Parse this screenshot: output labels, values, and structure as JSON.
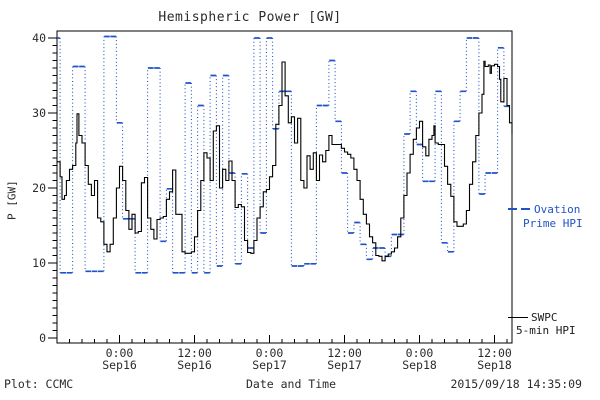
{
  "title": "Hemispheric Power [GW]",
  "axes": {
    "ylabel": "P [GW]",
    "xlabel": "Date and Time",
    "yticks": [
      "0",
      "10",
      "20",
      "30",
      "40"
    ],
    "xticks": [
      {
        "time": "0:00",
        "date": "Sep16"
      },
      {
        "time": "12:00",
        "date": "Sep16"
      },
      {
        "time": "0:00",
        "date": "Sep17"
      },
      {
        "time": "12:00",
        "date": "Sep17"
      },
      {
        "time": "0:00",
        "date": "Sep18"
      },
      {
        "time": "12:00",
        "date": "Sep18"
      }
    ]
  },
  "footer": {
    "credit": "Plot: CCMC",
    "timestamp": "2015/09/18 14:35:09"
  },
  "legend": {
    "ovation_line1": "Ovation",
    "ovation_line2": "Prime HPI",
    "swpc_line1": "SWPC",
    "swpc_line2": "5-min HPI"
  },
  "colors": {
    "ovation": "#1f53c6",
    "swpc": "#000000",
    "frame": "#000000"
  },
  "chart_data": {
    "type": "line",
    "title": "Hemispheric Power [GW]",
    "xlabel": "Date and Time",
    "ylabel": "P [GW]",
    "ylim": [
      0,
      40
    ],
    "y_major_ticks": [
      0,
      10,
      20,
      30,
      40
    ],
    "y_minor_step": 1,
    "x_unit": "hours (axis spans ~2015-09-15 14:00 to 2015-09-18 14:50 UT)",
    "x_range_hours": [
      0,
      72.8
    ],
    "x_major_tick_hours": [
      10,
      22,
      34,
      46,
      58,
      70
    ],
    "x_minor_step_hours": 2,
    "grid": false,
    "legend_position": "right-outside",
    "series": [
      {
        "name": "Ovation Prime HPI",
        "style": "hourly horizontal dashes joined by dotted risers",
        "cadence_hours": 1,
        "start_hour": 0,
        "values": [
          40,
          8.7,
          8.7,
          36.2,
          36.2,
          8.9,
          8.9,
          8.9,
          40.2,
          40.2,
          28.7,
          15.9,
          15.9,
          8.7,
          8.7,
          36,
          36,
          12.9,
          19.9,
          8.7,
          8.7,
          34,
          8.7,
          31,
          8.7,
          35,
          9.6,
          35,
          22,
          9.9,
          21.9,
          12,
          40,
          14,
          40,
          27.9,
          32.9,
          32.9,
          9.6,
          9.6,
          9.9,
          9.9,
          31,
          31,
          37,
          28.9,
          22,
          14,
          15.4,
          12.5,
          10.5,
          12,
          12,
          10.9,
          13.8,
          13.8,
          27.2,
          32.9,
          25.8,
          20.9,
          20.9,
          32.9,
          12.7,
          11.5,
          28.9,
          32.9,
          40,
          40,
          19.2,
          22,
          22,
          38.7,
          30.9
        ]
      },
      {
        "name": "SWPC 5-min HPI",
        "style": "step line",
        "points": [
          [
            0,
            23.5
          ],
          [
            0.5,
            21.5
          ],
          [
            0.8,
            18.5
          ],
          [
            1.2,
            19
          ],
          [
            1.5,
            21
          ],
          [
            2,
            22.5
          ],
          [
            2.5,
            23
          ],
          [
            3,
            26
          ],
          [
            3.2,
            29.9
          ],
          [
            3.5,
            27
          ],
          [
            4,
            26
          ],
          [
            4.5,
            23
          ],
          [
            5,
            20.5
          ],
          [
            5.5,
            19
          ],
          [
            6,
            21
          ],
          [
            6.5,
            16
          ],
          [
            7,
            15.5
          ],
          [
            7.5,
            12.5
          ],
          [
            8,
            11.5
          ],
          [
            8.5,
            12.5
          ],
          [
            9,
            16
          ],
          [
            9.5,
            20
          ],
          [
            10,
            22.9
          ],
          [
            10.5,
            21
          ],
          [
            11,
            17
          ],
          [
            11.5,
            14.5
          ],
          [
            12,
            16.5
          ],
          [
            12.5,
            14
          ],
          [
            13,
            14.2
          ],
          [
            13.5,
            20.7
          ],
          [
            14,
            21.4
          ],
          [
            14.5,
            16
          ],
          [
            15,
            14.5
          ],
          [
            15.5,
            13.2
          ],
          [
            16,
            15.8
          ],
          [
            16.5,
            16
          ],
          [
            17,
            16.2
          ],
          [
            17.5,
            18.5
          ],
          [
            18,
            19.5
          ],
          [
            18.5,
            22.4
          ],
          [
            19,
            16.5
          ],
          [
            19.5,
            16.5
          ],
          [
            20,
            11.5
          ],
          [
            20.5,
            11.3
          ],
          [
            21,
            11.3
          ],
          [
            21.5,
            11.5
          ],
          [
            22,
            13.5
          ],
          [
            22.5,
            17
          ],
          [
            23,
            21
          ],
          [
            23.5,
            24.7
          ],
          [
            24,
            24
          ],
          [
            24.5,
            21
          ],
          [
            25,
            27.6
          ],
          [
            25.5,
            28.3
          ],
          [
            26,
            20
          ],
          [
            26.5,
            22.5
          ],
          [
            27,
            21
          ],
          [
            27.5,
            23.6
          ],
          [
            28,
            21
          ],
          [
            28.5,
            17.4
          ],
          [
            29,
            17.8
          ],
          [
            29.5,
            17.5
          ],
          [
            30,
            13
          ],
          [
            30.5,
            11.4
          ],
          [
            31,
            11.3
          ],
          [
            31.5,
            13
          ],
          [
            32,
            16
          ],
          [
            32.5,
            17.5
          ],
          [
            33,
            19.5
          ],
          [
            33.5,
            19.8
          ],
          [
            34,
            21.5
          ],
          [
            34.5,
            23
          ],
          [
            35,
            28.5
          ],
          [
            35.5,
            31
          ],
          [
            36,
            36.8
          ],
          [
            36.5,
            32.3
          ],
          [
            37,
            28.7
          ],
          [
            37.5,
            29.5
          ],
          [
            38,
            26
          ],
          [
            38.5,
            29.3
          ],
          [
            39,
            21
          ],
          [
            39.5,
            20
          ],
          [
            40,
            24.3
          ],
          [
            40.5,
            22.5
          ],
          [
            41,
            24.7
          ],
          [
            41.5,
            21
          ],
          [
            42,
            24.4
          ],
          [
            42.5,
            23.5
          ],
          [
            43,
            25
          ],
          [
            43.5,
            27
          ],
          [
            44,
            25.8
          ],
          [
            44.5,
            25.8
          ],
          [
            45,
            25.8
          ],
          [
            45.5,
            25.3
          ],
          [
            46,
            24.8
          ],
          [
            46.5,
            24.5
          ],
          [
            47,
            24
          ],
          [
            47.5,
            22.5
          ],
          [
            48,
            21
          ],
          [
            48.5,
            18.5
          ],
          [
            49,
            16.5
          ],
          [
            49.5,
            15.2
          ],
          [
            50,
            13.5
          ],
          [
            50.5,
            12.7
          ],
          [
            51,
            11
          ],
          [
            51.5,
            10.9
          ],
          [
            52,
            10.3
          ],
          [
            52.5,
            10.9
          ],
          [
            53,
            11.2
          ],
          [
            53.5,
            11.5
          ],
          [
            54,
            12
          ],
          [
            54.5,
            13.5
          ],
          [
            55,
            16
          ],
          [
            55.5,
            19
          ],
          [
            56,
            22
          ],
          [
            56.5,
            24.5
          ],
          [
            57,
            26.5
          ],
          [
            57.5,
            28
          ],
          [
            58,
            28.9
          ],
          [
            58.5,
            25.5
          ],
          [
            59,
            24.3
          ],
          [
            59.5,
            26.5
          ],
          [
            60,
            27
          ],
          [
            60.3,
            28.3
          ],
          [
            60.5,
            26
          ],
          [
            61,
            25.8
          ],
          [
            61.5,
            25.8
          ],
          [
            62,
            22.9
          ],
          [
            62.5,
            20.5
          ],
          [
            63,
            18.9
          ],
          [
            63.5,
            15.5
          ],
          [
            64,
            14.9
          ],
          [
            64.5,
            14.9
          ],
          [
            65,
            15.2
          ],
          [
            65.5,
            17
          ],
          [
            66,
            20.5
          ],
          [
            66.5,
            23.5
          ],
          [
            67,
            27
          ],
          [
            67.5,
            30
          ],
          [
            68,
            32.5
          ],
          [
            68.3,
            36.9
          ],
          [
            68.5,
            36.2
          ],
          [
            69,
            36.4
          ],
          [
            69.3,
            35.3
          ],
          [
            69.5,
            36.3
          ],
          [
            70,
            36.5
          ],
          [
            70.5,
            36.2
          ],
          [
            70.8,
            34.5
          ],
          [
            71,
            31.5
          ],
          [
            71.5,
            34.6
          ],
          [
            72,
            31
          ],
          [
            72.4,
            28.7
          ],
          [
            72.8,
            27.2
          ]
        ]
      }
    ]
  }
}
